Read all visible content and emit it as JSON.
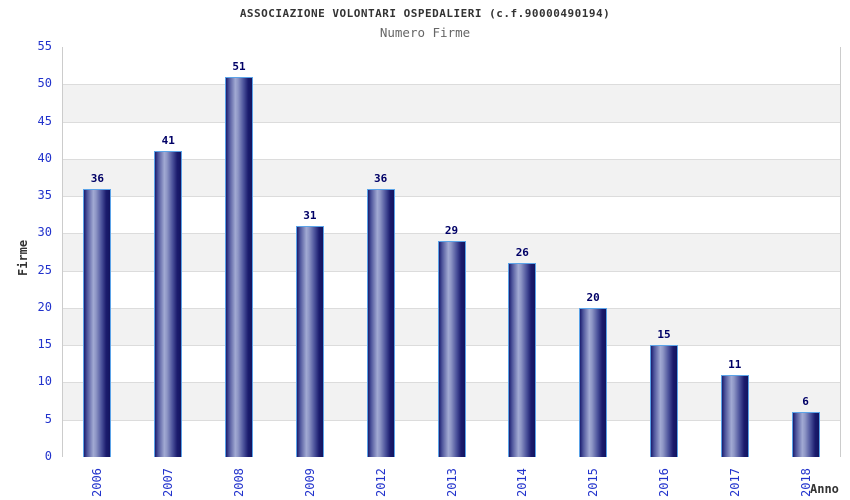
{
  "chart_data": {
    "type": "bar",
    "title": "ASSOCIAZIONE VOLONTARI OSPEDALIERI (c.f.90000490194)",
    "subtitle": "Numero Firme",
    "xlabel": "Anno",
    "ylabel": "Firme",
    "categories": [
      "2006",
      "2007",
      "2008",
      "2009",
      "2012",
      "2013",
      "2014",
      "2015",
      "2016",
      "2017",
      "2018"
    ],
    "values": [
      36,
      41,
      51,
      31,
      36,
      29,
      26,
      20,
      15,
      11,
      6
    ],
    "ylim": [
      0,
      55
    ],
    "yticks": [
      0,
      5,
      10,
      15,
      20,
      25,
      30,
      35,
      40,
      45,
      50,
      55
    ],
    "grid": true,
    "legend_position": "none",
    "band_colors": [
      "#ffffff",
      "#f2f2f2"
    ],
    "colors": {
      "tick_label": "#2233cc",
      "value_label": "#000066",
      "title": "#333333",
      "subtitle": "#666666",
      "grid_line": "#dcdcdc",
      "plot_border": "#cccccc",
      "bar_border": "#5ba3e8",
      "bar_dark": "#1b1c6e",
      "bar_light": "#a2aad3"
    }
  }
}
